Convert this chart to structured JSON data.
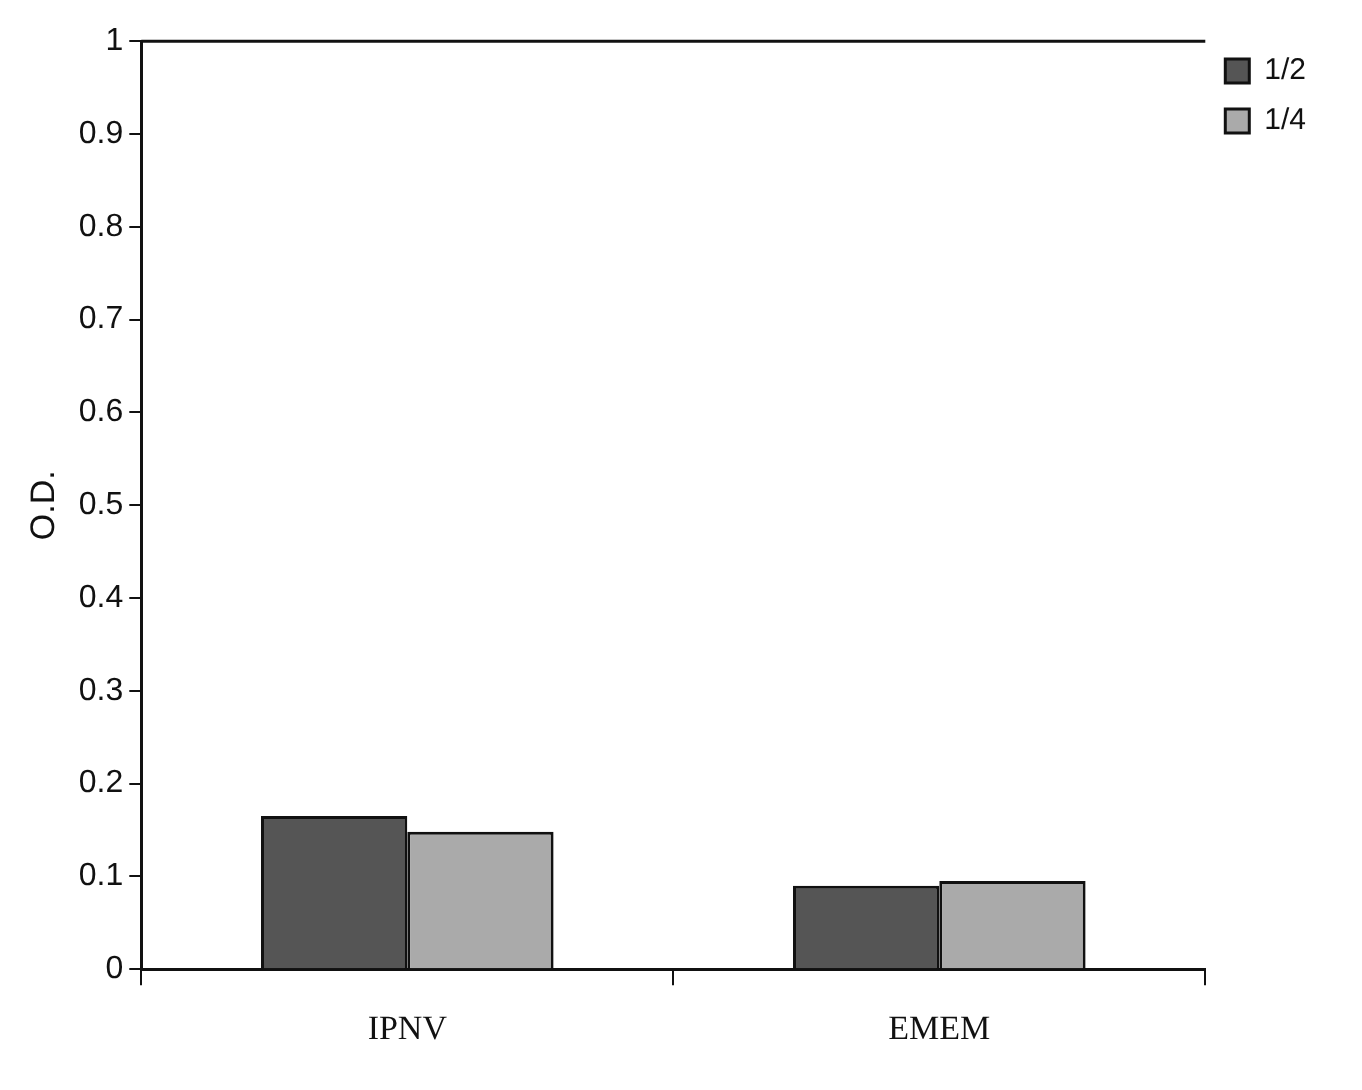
{
  "chart_data": {
    "type": "bar",
    "ylabel": "O.D.",
    "categories": [
      "IPNV",
      "EMEM"
    ],
    "series": [
      {
        "name": "1/2",
        "color": "#555555",
        "values": [
          0.165,
          0.09
        ]
      },
      {
        "name": "1/4",
        "color": "#aaaaaa",
        "values": [
          0.148,
          0.095
        ]
      }
    ],
    "ylim": [
      0,
      1
    ],
    "yticks": [
      0,
      0.1,
      0.2,
      0.3,
      0.4,
      0.5,
      0.6,
      0.7,
      0.8,
      0.9,
      1
    ],
    "grid": false,
    "legend": "top right"
  }
}
